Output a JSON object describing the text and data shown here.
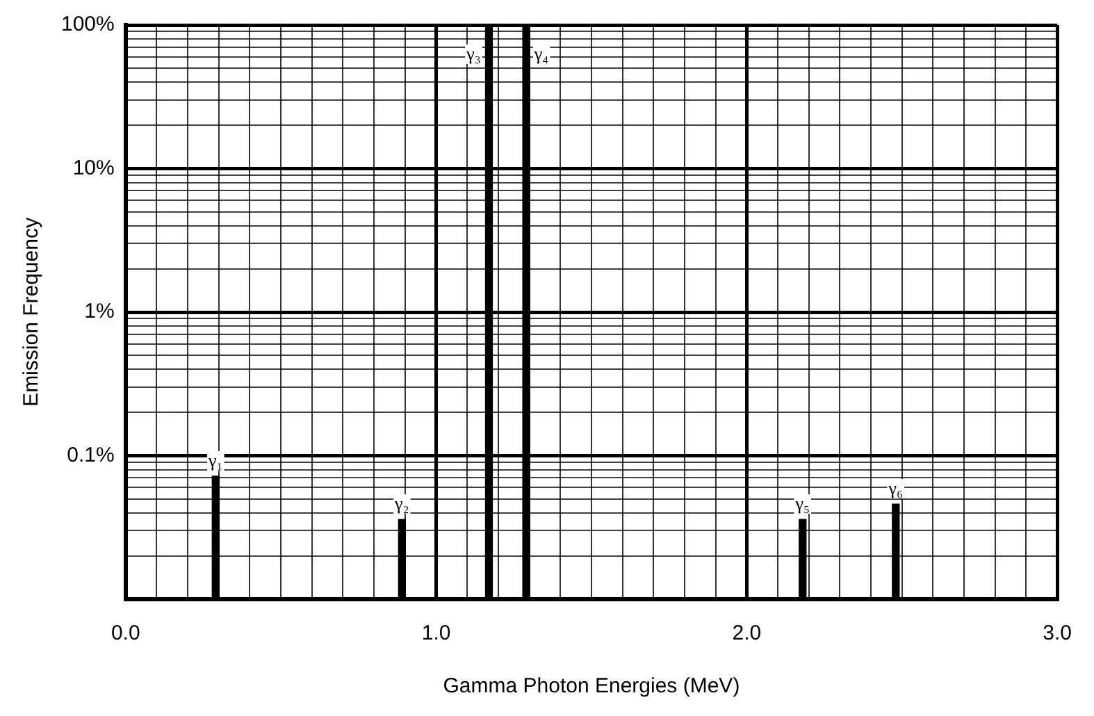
{
  "chart_data": {
    "type": "bar",
    "xlabel": "Gamma Photon Energies (MeV)",
    "ylabel": "Emission Frequency",
    "x": [
      0.29,
      0.89,
      1.17,
      1.29,
      2.18,
      2.48
    ],
    "values": [
      0.072,
      0.036,
      100,
      100,
      0.036,
      0.046
    ],
    "value_labels": [
      "γ₁",
      "γ₂",
      "γ₃",
      "γ₄",
      "γ₅",
      "γ₆"
    ],
    "color": "#000000",
    "log": "y",
    "grid": true,
    "legend": false,
    "xlim": [
      0,
      3
    ],
    "xticks": [
      {
        "value": 0,
        "label": "0.0"
      },
      {
        "value": 0.1,
        "label": null
      },
      {
        "value": 0.2,
        "label": null
      },
      {
        "value": 0.3,
        "label": null
      },
      {
        "value": 0.4,
        "label": null
      },
      {
        "value": 0.5,
        "label": null
      },
      {
        "value": 0.6,
        "label": null
      },
      {
        "value": 0.7,
        "label": null
      },
      {
        "value": 0.8,
        "label": null
      },
      {
        "value": 0.9,
        "label": null
      },
      {
        "value": 1,
        "label": "1.0"
      },
      {
        "value": 1.1,
        "label": null
      },
      {
        "value": 1.2,
        "label": null
      },
      {
        "value": 1.3,
        "label": null
      },
      {
        "value": 1.4,
        "label": null
      },
      {
        "value": 1.5,
        "label": null
      },
      {
        "value": 1.6,
        "label": null
      },
      {
        "value": 1.7,
        "label": null
      },
      {
        "value": 1.8,
        "label": null
      },
      {
        "value": 1.9,
        "label": null
      },
      {
        "value": 2,
        "label": "2.0"
      },
      {
        "value": 2.1,
        "label": null
      },
      {
        "value": 2.2,
        "label": null
      },
      {
        "value": 2.3,
        "label": null
      },
      {
        "value": 2.4,
        "label": null
      },
      {
        "value": 2.5,
        "label": null
      },
      {
        "value": 2.6,
        "label": null
      },
      {
        "value": 2.7,
        "label": null
      },
      {
        "value": 2.8,
        "label": null
      },
      {
        "value": 2.9,
        "label": null
      },
      {
        "value": 3,
        "label": "3.0"
      }
    ],
    "ylim": [
      0.01,
      100
    ],
    "yticks": [
      {
        "value": 0.01,
        "label": null
      },
      {
        "value": 0.02,
        "label": null
      },
      {
        "value": 0.03,
        "label": null
      },
      {
        "value": 0.04,
        "label": null
      },
      {
        "value": 0.05,
        "label": null
      },
      {
        "value": 0.06,
        "label": null
      },
      {
        "value": 0.07,
        "label": null
      },
      {
        "value": 0.08,
        "label": null
      },
      {
        "value": 0.09,
        "label": null
      },
      {
        "value": 0.1,
        "label": "0.1%"
      },
      {
        "value": 0.2,
        "label": null
      },
      {
        "value": 0.3,
        "label": null
      },
      {
        "value": 0.4,
        "label": null
      },
      {
        "value": 0.5,
        "label": null
      },
      {
        "value": 0.6,
        "label": null
      },
      {
        "value": 0.7,
        "label": null
      },
      {
        "value": 0.8,
        "label": null
      },
      {
        "value": 0.9,
        "label": null
      },
      {
        "value": 1,
        "label": "1%"
      },
      {
        "value": 2,
        "label": null
      },
      {
        "value": 3,
        "label": null
      },
      {
        "value": 4,
        "label": null
      },
      {
        "value": 5,
        "label": null
      },
      {
        "value": 6,
        "label": null
      },
      {
        "value": 7,
        "label": null
      },
      {
        "value": 8,
        "label": null
      },
      {
        "value": 9,
        "label": null
      },
      {
        "value": 10,
        "label": "10%"
      },
      {
        "value": 20,
        "label": null
      },
      {
        "value": 30,
        "label": null
      },
      {
        "value": 40,
        "label": null
      },
      {
        "value": 50,
        "label": null
      },
      {
        "value": 60,
        "label": null
      },
      {
        "value": 70,
        "label": null
      },
      {
        "value": 80,
        "label": null
      },
      {
        "value": 90,
        "label": null
      },
      {
        "value": 100,
        "label": "100%"
      }
    ]
  }
}
